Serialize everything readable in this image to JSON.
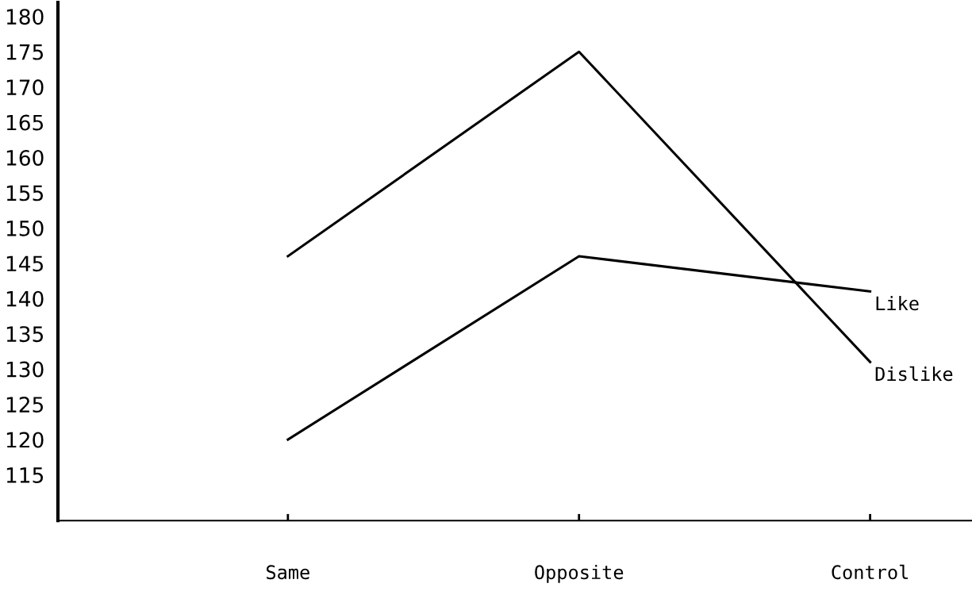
{
  "chart_data": {
    "type": "line",
    "categories": [
      "Same",
      "Opposite",
      "Control"
    ],
    "series": [
      {
        "name": "Like",
        "color": "#000000",
        "values": [
          120,
          146,
          141
        ]
      },
      {
        "name": "Dislike",
        "color": "#000000",
        "values": [
          146,
          175,
          131
        ]
      }
    ],
    "ylim": [
      108.5,
      182
    ],
    "yticks": [
      115,
      120,
      125,
      130,
      135,
      140,
      145,
      150,
      155,
      160,
      165,
      170,
      175,
      180
    ],
    "grid": false,
    "legend": false,
    "marker": "none",
    "line_style": "solid"
  }
}
